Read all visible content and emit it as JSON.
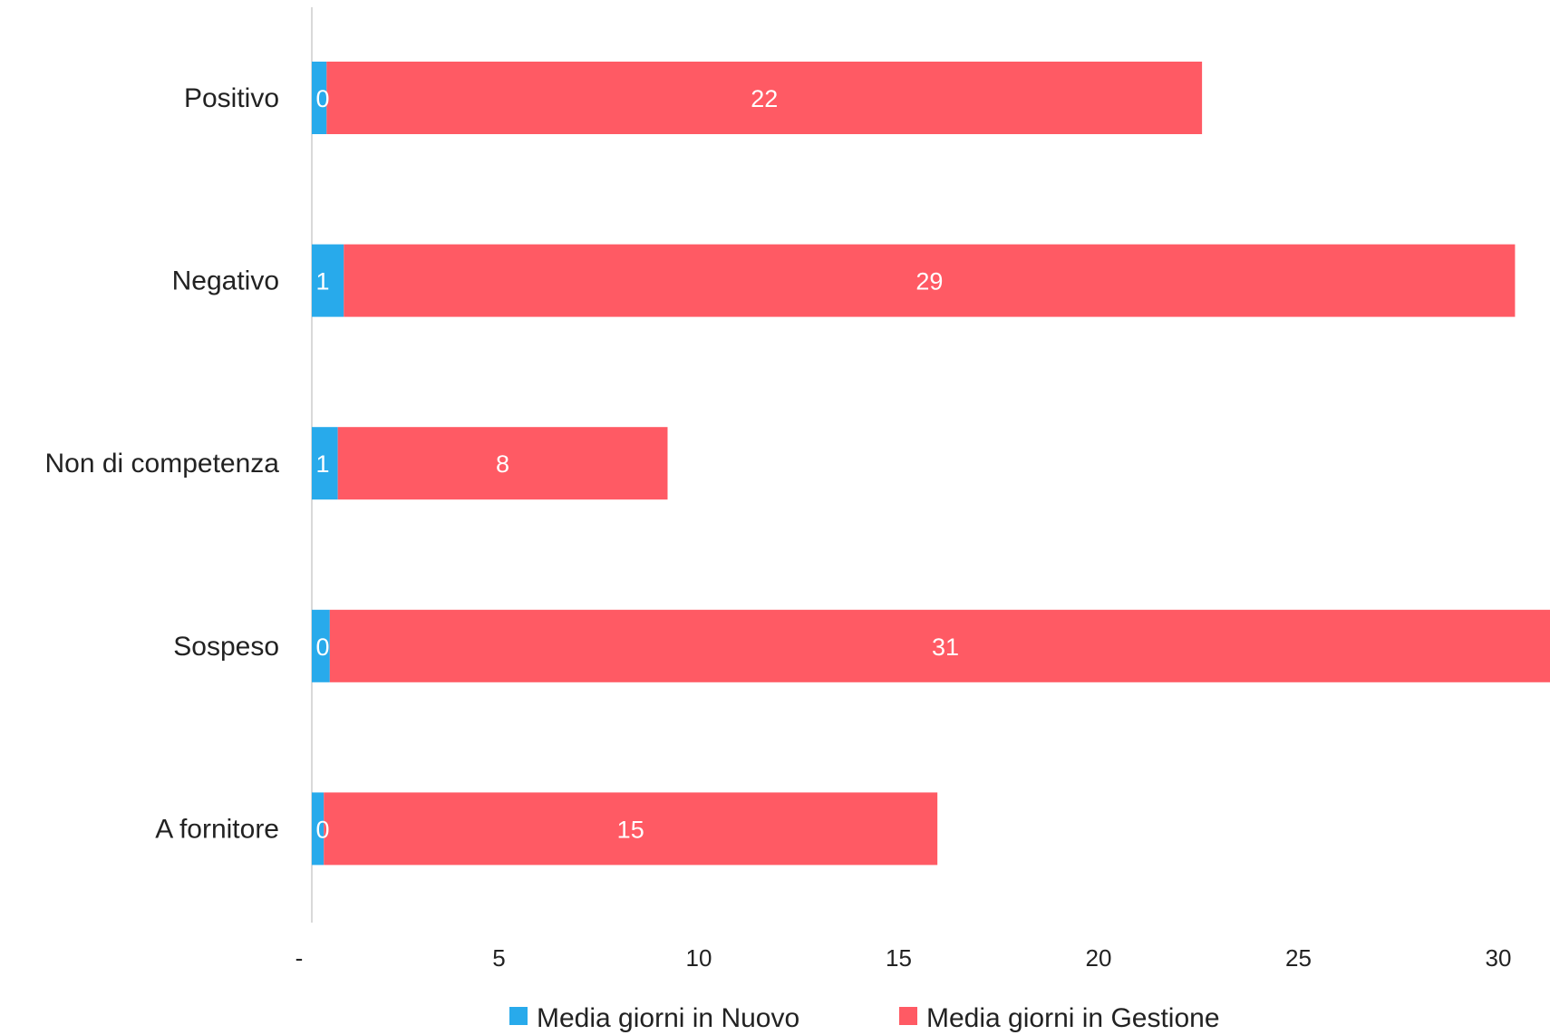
{
  "chart_data": {
    "type": "bar",
    "orientation": "horizontal",
    "stacked": true,
    "title": "",
    "xlabel": "",
    "ylabel": "",
    "categories": [
      "Positivo",
      "Negativo",
      "Non di competenza",
      "Sospeso",
      "A fornitore"
    ],
    "series": [
      {
        "name": "Media giorni in Nuovo",
        "color": "#28aaeb",
        "values": [
          0.37,
          0.8,
          0.65,
          0.45,
          0.3
        ],
        "labels": [
          "0",
          "1",
          "1",
          "0",
          "0"
        ]
      },
      {
        "name": "Media giorni in Gestione",
        "color": "#ff5a64",
        "values": [
          21.9,
          29.3,
          8.25,
          30.8,
          15.35
        ],
        "labels": [
          "22",
          "29",
          "8",
          "31",
          "15"
        ]
      }
    ],
    "xlim": [
      0,
      30.6
    ],
    "xticks": [
      0,
      5,
      10,
      15,
      20,
      25,
      30
    ],
    "xtick_labels": [
      "-",
      "5",
      "10",
      "15",
      "20",
      "25",
      "30"
    ],
    "grid": false,
    "legend_position": "bottom"
  }
}
